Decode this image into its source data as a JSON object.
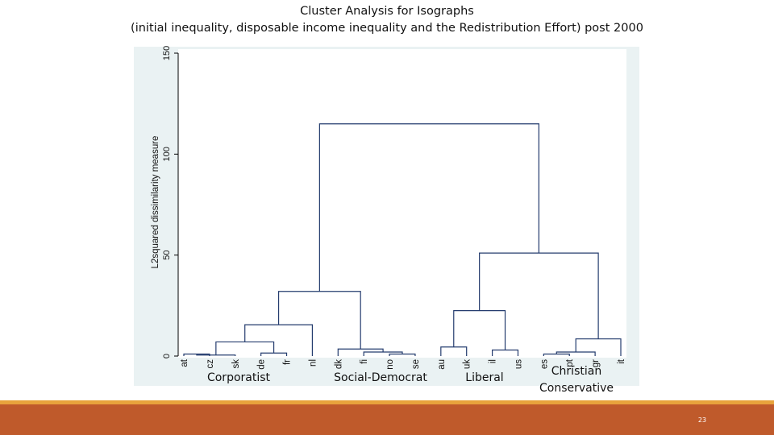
{
  "slide": {
    "title_line1": "Cluster Analysis for Isographs",
    "title_line2": "(initial inequality, disposable income inequality and the Redistribution Effort) post 2000",
    "page_number": "23"
  },
  "groups": [
    {
      "label": "Corporatist"
    },
    {
      "label": "Social-Democrat"
    },
    {
      "label": "Liberal"
    },
    {
      "label": "Christian\nConservative"
    }
  ],
  "chart_data": {
    "type": "dendrogram",
    "ylabel": "L2squared dissimilarity measure",
    "ylim": [
      0,
      150
    ],
    "yticks": [
      0,
      50,
      100,
      150
    ],
    "leaves": [
      "at",
      "cz",
      "sk",
      "de",
      "fr",
      "nl",
      "dk",
      "fi",
      "no",
      "se",
      "au",
      "uk",
      "il",
      "us",
      "es",
      "pt",
      "gr",
      "it"
    ],
    "merges": [
      {
        "left": "at",
        "right": "cz",
        "height": 1.0,
        "id": "c1"
      },
      {
        "left": "c1",
        "right": "sk",
        "height": 0.5,
        "id": "c2"
      },
      {
        "left": "de",
        "right": "fr",
        "height": 1.5,
        "id": "c3"
      },
      {
        "left": "c2",
        "right": "c3",
        "height": 7.0,
        "id": "c4"
      },
      {
        "left": "c4",
        "right": "nl",
        "height": 15.5,
        "id": "c5"
      },
      {
        "left": "no",
        "right": "se",
        "height": 1.0,
        "id": "c6"
      },
      {
        "left": "fi",
        "right": "c6",
        "height": 2.0,
        "id": "c7"
      },
      {
        "left": "dk",
        "right": "c7",
        "height": 3.5,
        "id": "c8"
      },
      {
        "left": "c5",
        "right": "c8",
        "height": 32.0,
        "id": "c9"
      },
      {
        "left": "au",
        "right": "uk",
        "height": 4.5,
        "id": "c10"
      },
      {
        "left": "il",
        "right": "us",
        "height": 3.0,
        "id": "c11"
      },
      {
        "left": "c10",
        "right": "c11",
        "height": 22.5,
        "id": "c12"
      },
      {
        "left": "es",
        "right": "pt",
        "height": 1.0,
        "id": "c13"
      },
      {
        "left": "c13",
        "right": "gr",
        "height": 2.0,
        "id": "c14"
      },
      {
        "left": "c14",
        "right": "it",
        "height": 8.5,
        "id": "c15"
      },
      {
        "left": "c12",
        "right": "c15",
        "height": 51.0,
        "id": "c16"
      },
      {
        "left": "c9",
        "right": "c16",
        "height": 115.0,
        "id": "c17"
      }
    ],
    "colors": {
      "links": "#243c6e",
      "axis": "#000000",
      "frame": "#eaf2f3"
    }
  }
}
